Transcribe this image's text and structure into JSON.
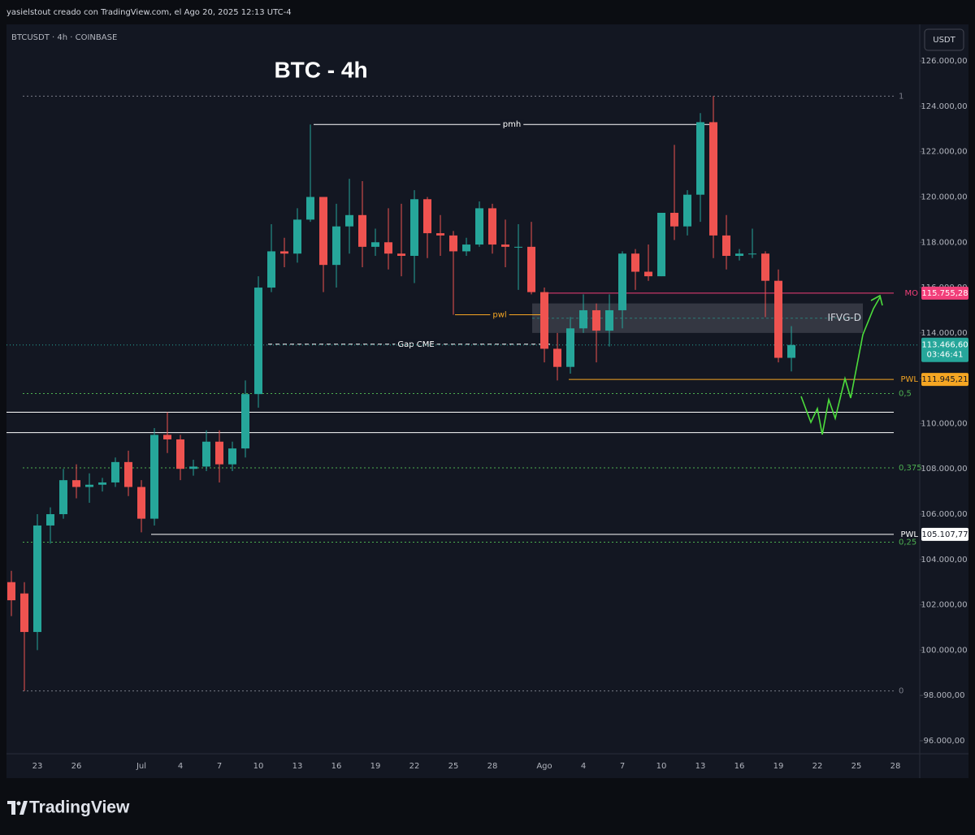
{
  "header": {
    "attribution": "yasielstout creado con TradingView.com, el Ago 20, 2025 12:13 UTC-4",
    "brand": "TradingView"
  },
  "chart_data": {
    "type": "candlestick",
    "title": "BTC - 4h",
    "symbol": "BTCUSDT · 4h · COINBASE",
    "currency": "USDT",
    "categories": [
      null,
      null,
      "23",
      null,
      null,
      "26",
      null,
      null,
      null,
      null,
      "Jul",
      null,
      null,
      "4",
      null,
      null,
      "7",
      null,
      null,
      "10",
      null,
      null,
      "13",
      null,
      null,
      "16",
      null,
      null,
      "19",
      null,
      null,
      "22",
      null,
      null,
      "25",
      null,
      null,
      "28",
      null,
      null,
      null,
      "Ago",
      null,
      null,
      "4",
      null,
      null,
      "7",
      null,
      null,
      "10",
      null,
      null,
      "13",
      null,
      null,
      "16",
      null,
      null,
      "19",
      null,
      null,
      "22",
      null,
      null,
      "25",
      null,
      null,
      "28",
      null
    ],
    "open": [
      103000,
      102500,
      100800,
      105500,
      106000,
      107500,
      107200,
      107300,
      107400,
      108300,
      107200,
      105800,
      109500,
      109300,
      108000,
      108100,
      109200,
      108200,
      108900,
      111300,
      116000,
      117600,
      117500,
      119000,
      120000,
      117000,
      118700,
      119200,
      117800,
      118000,
      117500,
      117400,
      119900,
      118400,
      118300,
      117600,
      117900,
      119500,
      117900,
      117800,
      117800,
      115800,
      113300,
      112500,
      114200,
      115000,
      114100,
      115000,
      117500,
      116700,
      116500,
      119300,
      118700,
      120100,
      123300,
      118300,
      117400,
      117500,
      117500,
      116300,
      112900,
      null,
      null,
      null,
      null,
      null,
      null,
      null,
      null,
      null
    ],
    "high": [
      103500,
      103000,
      106000,
      106300,
      108000,
      108200,
      107800,
      107600,
      108500,
      108800,
      107500,
      109800,
      110500,
      109500,
      108400,
      109700,
      109700,
      109200,
      111900,
      116500,
      118800,
      118200,
      119500,
      123200,
      120000,
      119700,
      120800,
      120700,
      118600,
      119500,
      119700,
      120300,
      120000,
      119200,
      118500,
      118200,
      119800,
      119700,
      119000,
      118800,
      118900,
      116000,
      114000,
      114700,
      115700,
      115300,
      115700,
      117600,
      117700,
      117900,
      119300,
      122300,
      120300,
      123700,
      124450,
      119200,
      117700,
      118600,
      117600,
      116800,
      114300,
      null,
      null,
      null,
      null,
      null,
      null,
      null,
      null,
      null
    ],
    "low": [
      101500,
      98200,
      100000,
      104700,
      105800,
      106700,
      106500,
      107000,
      107200,
      106800,
      105200,
      105500,
      108700,
      107500,
      107700,
      107900,
      107400,
      107900,
      108500,
      110700,
      115800,
      116900,
      117100,
      118900,
      115800,
      116000,
      117500,
      116900,
      117400,
      116800,
      116500,
      116200,
      117300,
      117400,
      114800,
      117400,
      117800,
      117500,
      116900,
      115900,
      115700,
      112700,
      111900,
      112200,
      114000,
      112700,
      113400,
      114200,
      115900,
      116300,
      116500,
      118100,
      118300,
      118900,
      117300,
      116800,
      117200,
      117300,
      114700,
      112700,
      112300,
      null,
      null,
      null,
      null,
      null,
      null,
      null,
      null,
      null
    ],
    "close": [
      102200,
      100800,
      105500,
      106000,
      107500,
      107200,
      107300,
      107400,
      108300,
      107200,
      105800,
      109500,
      109300,
      108000,
      108100,
      109200,
      108200,
      108900,
      111300,
      116000,
      117600,
      117500,
      119000,
      120000,
      117000,
      118700,
      119200,
      117800,
      118000,
      117500,
      117400,
      119900,
      118400,
      118300,
      117600,
      117900,
      119500,
      117900,
      117800,
      117800,
      115800,
      113300,
      112500,
      114200,
      115000,
      114100,
      115000,
      117500,
      116700,
      116500,
      119300,
      118700,
      120100,
      123300,
      118300,
      117400,
      117500,
      117500,
      116300,
      112900,
      113466.6,
      null,
      null,
      null,
      null,
      null,
      null,
      null,
      null,
      null
    ],
    "up_color": "#26a69a",
    "down_color": "#ef5350",
    "ylim": [
      95425,
      127617
    ],
    "yticks": [
      {
        "value": 96000,
        "label": "96.000,00"
      },
      {
        "value": 98000,
        "label": "98.000,00"
      },
      {
        "value": 100000,
        "label": "100.000,00"
      },
      {
        "value": 102000,
        "label": "102.000,00"
      },
      {
        "value": 104000,
        "label": "104.000,00"
      },
      {
        "value": 106000,
        "label": "106.000,00"
      },
      {
        "value": 108000,
        "label": "108.000,00"
      },
      {
        "value": 110000,
        "label": "110.000,00"
      },
      {
        "value": 112000,
        "label": "112.000,00"
      },
      {
        "value": 114000,
        "label": "114.000,00"
      },
      {
        "value": 116000,
        "label": "116.000,00"
      },
      {
        "value": 118000,
        "label": "118.000,00"
      },
      {
        "value": 120000,
        "label": "120.000,00"
      },
      {
        "value": 122000,
        "label": "122.000,00"
      },
      {
        "value": 124000,
        "label": "124.000,00"
      },
      {
        "value": 126000,
        "label": "126.000,00"
      }
    ],
    "last_price": {
      "value": 113466.6,
      "value_label": "113.466,60",
      "countdown": "03:46:41",
      "color": "#26a69a"
    },
    "levels": [
      {
        "name": "1",
        "value": 124450,
        "color": "#787b86",
        "style": "dotted"
      },
      {
        "name": "0,5",
        "value": 111325,
        "color": "#4caf50",
        "style": "dotted"
      },
      {
        "name": "0,375",
        "value": 108043.75,
        "color": "#4caf50",
        "style": "dotted"
      },
      {
        "name": "0,25",
        "value": 104762.5,
        "color": "#4caf50",
        "style": "dotted"
      },
      {
        "name": "0",
        "value": 98200,
        "color": "#787b86",
        "style": "dotted"
      },
      {
        "name": "pmh",
        "value": 123200,
        "color": "#ffffff",
        "style": "solid"
      },
      {
        "name": "pwl",
        "value": 114800,
        "color": "#f5a623",
        "style": "solid"
      },
      {
        "name": "Gap CME",
        "value": 113500,
        "color": "#ffffff",
        "style": "dashed"
      },
      {
        "name": "MO",
        "value": 115755.28,
        "value_label": "115.755,28",
        "color": "#f23f7a",
        "style": "solid"
      },
      {
        "name": "PWL",
        "value": 111945.21,
        "value_label": "111.945,21",
        "color": "#f5a623",
        "style": "solid"
      },
      {
        "name": "PWL",
        "value": 105107.77,
        "value_label": "105.107,77",
        "color": "#ffffff",
        "style": "solid"
      },
      {
        "value": 110500,
        "color": "#ffffff",
        "style": "solid"
      },
      {
        "value": 109600,
        "color": "#ffffff",
        "style": "solid"
      }
    ],
    "zone": {
      "name": "IFVG-D",
      "low": 114000,
      "high": 115300,
      "color": "#5d606b"
    }
  }
}
